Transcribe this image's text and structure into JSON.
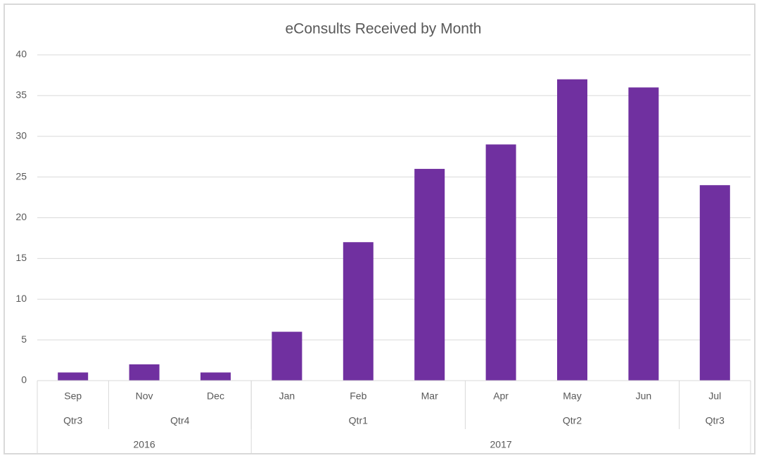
{
  "chart_data": {
    "type": "bar",
    "title": "eConsults Received by Month",
    "categories": [
      "Sep",
      "Nov",
      "Dec",
      "Jan",
      "Feb",
      "Mar",
      "Apr",
      "May",
      "Jun",
      "Jul"
    ],
    "quarters": [
      "Qtr3",
      "Qtr4",
      null,
      "Qtr1",
      null,
      null,
      "Qtr2",
      null,
      null,
      "Qtr3"
    ],
    "years": [
      "2016",
      null,
      null,
      "2017",
      null,
      null,
      null,
      null,
      null,
      null
    ],
    "values": [
      1,
      2,
      1,
      6,
      17,
      26,
      29,
      37,
      36,
      24
    ],
    "color": "#7030a0",
    "ylim": [
      0,
      40
    ],
    "yticks": [
      0,
      5,
      10,
      15,
      20,
      25,
      30,
      35,
      40
    ],
    "grid": true
  }
}
